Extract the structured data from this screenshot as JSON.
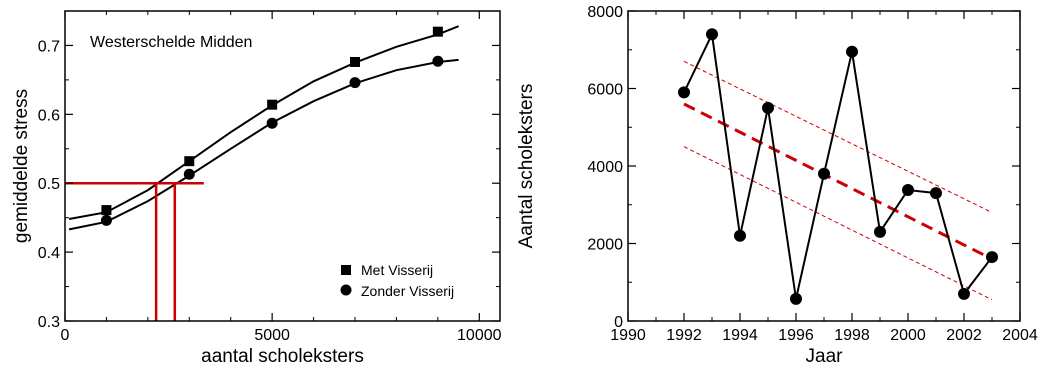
{
  "chart_data": [
    {
      "type": "line",
      "annotation": "Westerschelde Midden",
      "xlabel": "aantal scholeksters",
      "ylabel": "gemiddelde stress",
      "xlim": [
        0,
        10500
      ],
      "ylim": [
        0.3,
        0.75
      ],
      "xticks": [
        0,
        5000,
        10000
      ],
      "xtick_labels": [
        "0",
        "5000",
        "10000"
      ],
      "yticks": [
        0.3,
        0.4,
        0.5,
        0.6,
        0.7
      ],
      "ytick_labels": [
        "0.3",
        "0.4",
        "0.5",
        "0.6",
        "0.7"
      ],
      "grid": false,
      "legend_position": "bottom-right",
      "series": [
        {
          "name": "Met Visserij",
          "marker": "square",
          "color": "#000000",
          "points": [
            [
              1000,
              0.461
            ],
            [
              3000,
              0.532
            ],
            [
              5000,
              0.614
            ],
            [
              7000,
              0.676
            ],
            [
              9000,
              0.72
            ]
          ],
          "curve": [
            [
              100,
              0.448
            ],
            [
              1000,
              0.458
            ],
            [
              2000,
              0.49
            ],
            [
              3000,
              0.532
            ],
            [
              4000,
              0.574
            ],
            [
              5000,
              0.613
            ],
            [
              6000,
              0.648
            ],
            [
              7000,
              0.675
            ],
            [
              8000,
              0.698
            ],
            [
              9000,
              0.716
            ],
            [
              9500,
              0.728
            ]
          ]
        },
        {
          "name": "Zonder Visserij",
          "marker": "circle",
          "color": "#000000",
          "points": [
            [
              1000,
              0.446
            ],
            [
              3000,
              0.513
            ],
            [
              5000,
              0.587
            ],
            [
              7000,
              0.646
            ],
            [
              9000,
              0.677
            ]
          ],
          "curve": [
            [
              100,
              0.433
            ],
            [
              1000,
              0.444
            ],
            [
              2000,
              0.474
            ],
            [
              3000,
              0.511
            ],
            [
              4000,
              0.55
            ],
            [
              5000,
              0.588
            ],
            [
              6000,
              0.619
            ],
            [
              7000,
              0.645
            ],
            [
              8000,
              0.664
            ],
            [
              9000,
              0.676
            ],
            [
              9500,
              0.679
            ]
          ]
        }
      ],
      "reference_lines": {
        "color": "#cc0000",
        "horizontal": {
          "y": 0.5,
          "x_from": 0,
          "x_to": 3350
        },
        "verticals": [
          {
            "x": 2200,
            "y_from": 0.3,
            "y_to": 0.5
          },
          {
            "x": 2650,
            "y_from": 0.3,
            "y_to": 0.5
          }
        ]
      }
    },
    {
      "type": "line",
      "xlabel": "Jaar",
      "ylabel": "Aantal scholeksters",
      "xlim": [
        1990,
        2004
      ],
      "ylim": [
        0,
        8000
      ],
      "xticks": [
        1990,
        1992,
        1994,
        1996,
        1998,
        2000,
        2002,
        2004
      ],
      "xtick_labels": [
        "1990",
        "1992",
        "1994",
        "1996",
        "1998",
        "2000",
        "2002",
        "2004"
      ],
      "yticks": [
        0,
        2000,
        4000,
        6000,
        8000
      ],
      "ytick_labels": [
        "0",
        "2000",
        "4000",
        "6000",
        "8000"
      ],
      "grid": false,
      "series": [
        {
          "marker": "circle",
          "color": "#000000",
          "x": [
            1992,
            1993,
            1994,
            1995,
            1996,
            1997,
            1998,
            1999,
            2000,
            2001,
            2002,
            2003
          ],
          "y": [
            5900,
            7400,
            2200,
            5500,
            570,
            3800,
            6950,
            2300,
            3380,
            3300,
            700,
            1650
          ]
        }
      ],
      "trend": {
        "color": "#cc0000",
        "x": [
          1992,
          2003
        ],
        "fit": [
          5600,
          1600
        ],
        "upper": [
          6700,
          2800
        ],
        "lower": [
          4500,
          550
        ]
      }
    }
  ]
}
